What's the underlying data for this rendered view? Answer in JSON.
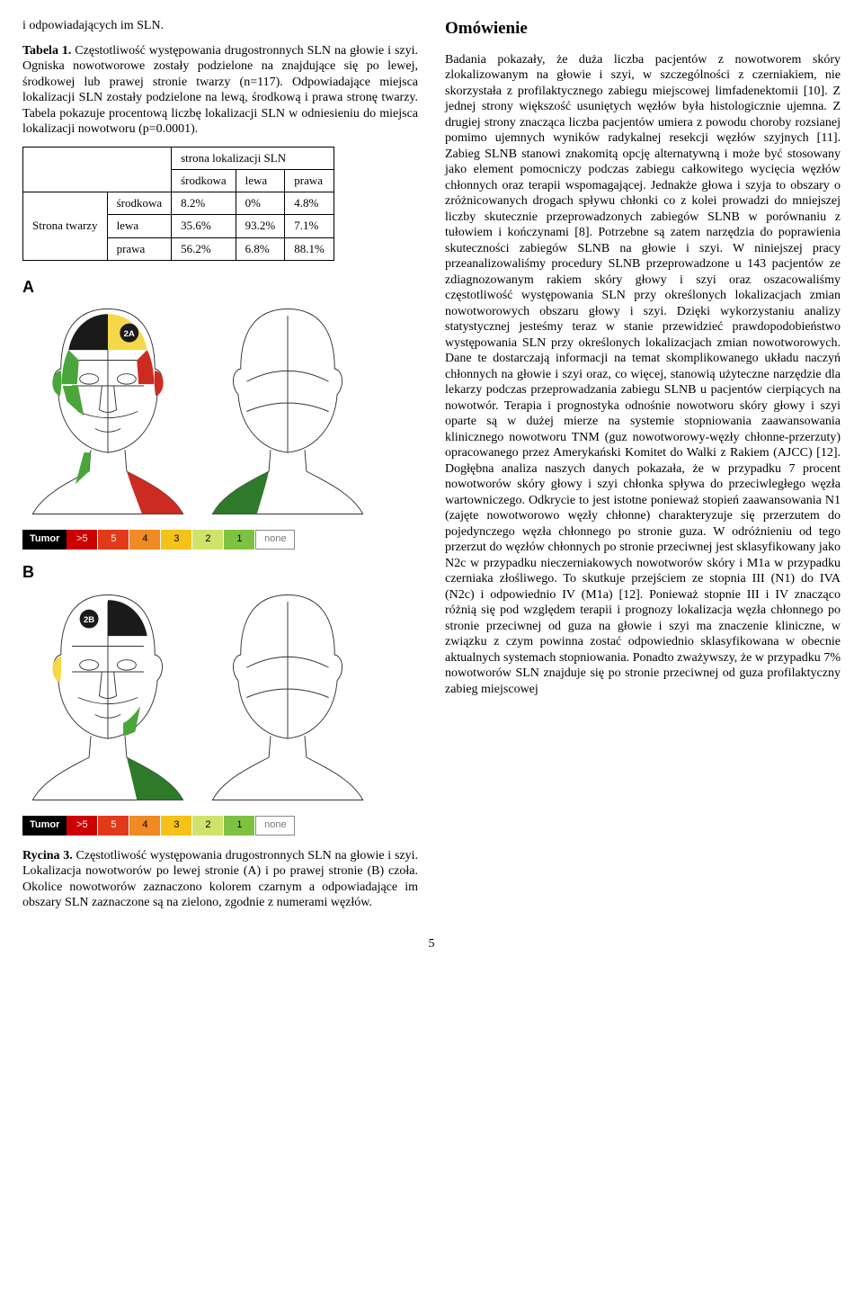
{
  "left": {
    "intro": "i odpowiadających im SLN.",
    "table_caption_label": "Tabela 1.",
    "table_caption_text": " Częstotliwość występowania drugostronnych SLN na głowie i szyi. Ogniska nowotworowe zostały podzielone na znajdujące się po lewej, środkowej lub prawej stronie twarzy (n=117). Odpowiadające miejsca lokalizacji SLN zostały podzielone na lewą, środkową i prawa stronę twarzy. Tabela pokazuje procentową liczbę lokalizacji SLN w odniesieniu do miejsca lokalizacji nowotworu (p=0.0001).",
    "table": {
      "header_group": "strona lokalizacji SLN",
      "col_headers": [
        "środkowa",
        "lewa",
        "prawa"
      ],
      "row_group": "Strona twarzy",
      "rows": [
        {
          "label": "środkowa",
          "cells": [
            "8.2%",
            "0%",
            "4.8%"
          ]
        },
        {
          "label": "lewa",
          "cells": [
            "35.6%",
            "93.2%",
            "7.1%"
          ]
        },
        {
          "label": "prawa",
          "cells": [
            "56.2%",
            "6.8%",
            "88.1%"
          ]
        }
      ]
    },
    "figure": {
      "panel_a": "A",
      "panel_b": "B",
      "legend_label": "Tumor",
      "legend_cells": [
        {
          "text": ">5",
          "bg": "#cc0000",
          "fg": "#ffffff"
        },
        {
          "text": "5",
          "bg": "#e03a1a",
          "fg": "#ffffff"
        },
        {
          "text": "4",
          "bg": "#ef8a24",
          "fg": "#000000"
        },
        {
          "text": "3",
          "bg": "#f5c21a",
          "fg": "#000000"
        },
        {
          "text": "2",
          "bg": "#cfe26a",
          "fg": "#000000"
        },
        {
          "text": "1",
          "bg": "#7fc241",
          "fg": "#000000"
        }
      ],
      "legend_none": "none",
      "colors": {
        "black": "#1a1a1a",
        "red": "#cc2b22",
        "yellow": "#f4d84a",
        "green": "#4aa53a",
        "dark_green": "#2f7a2a",
        "outline": "#333333",
        "badge_bg": "#1a1a1a",
        "badge_text": "#ffffff"
      },
      "badge_a": "2A",
      "badge_b": "2B"
    },
    "figure_caption_label": "Rycina 3.",
    "figure_caption_text": " Częstotliwość występowania drugostronnych SLN na głowie i szyi. Lokalizacja nowotworów po lewej stronie (A) i po prawej stronie (B) czoła. Okolice nowotworów zaznaczono kolorem czarnym a odpowiadające im obszary SLN zaznaczone są na zielono, zgodnie z numerami węzłów."
  },
  "right": {
    "heading": "Omówienie",
    "body": "Badania pokazały, że duża liczba pacjentów z nowotworem skóry zlokalizowanym na głowie i szyi, w szczególności z czerniakiem, nie skorzystała z profilaktycznego zabiegu miejscowej limfadenektomii [10]. Z jednej strony większość usuniętych węzłów była histologicznie ujemna. Z drugiej strony znacząca liczba pacjentów umiera z powodu choroby rozsianej pomimo ujemnych wyników radykalnej resekcji węzłów szyjnych [11]. Zabieg SLNB stanowi znakomitą opcję alternatywną i może być stosowany jako element pomocniczy podczas zabiegu całkowitego wycięcia węzłów chłonnych oraz terapii wspomagającej. Jednakże głowa i szyja to obszary o zróżnicowanych drogach spływu chłonki co z kolei prowadzi do mniejszej liczby skutecznie przeprowadzonych zabiegów SLNB w porównaniu z tułowiem i kończynami [8]. Potrzebne są zatem narzędzia do poprawienia skuteczności zabiegów SLNB na głowie i szyi. W niniejszej pracy przeanalizowaliśmy procedury SLNB przeprowadzone u 143 pacjentów ze zdiagnozowanym rakiem skóry głowy i szyi oraz oszacowaliśmy częstotliwość występowania SLN przy określonych lokalizacjach zmian nowotworowych obszaru głowy i szyi. Dzięki wykorzystaniu analizy statystycznej jesteśmy teraz w stanie przewidzieć prawdopodobieństwo występowania SLN przy określonych lokalizacjach zmian nowotworowych. Dane te dostarczają informacji na temat skomplikowanego układu naczyń chłonnych na głowie i szyi oraz, co więcej, stanowią użyteczne narzędzie dla lekarzy podczas przeprowadzania zabiegu SLNB u pacjentów cierpiących na nowotwór. Terapia i prognostyka odnośnie nowotworu skóry głowy i szyi oparte są w dużej mierze na systemie stopniowania zaawansowania klinicznego nowotworu TNM (guz nowotworowy-węzły chłonne-przerzuty) opracowanego przez Amerykański Komitet do Walki z Rakiem (AJCC) [12]. Dogłębna analiza naszych danych pokazała, że w przypadku 7 procent nowotworów skóry głowy i szyi chłonka spływa do przeciwległego węzła wartowniczego. Odkrycie to jest istotne ponieważ stopień zaawansowania N1 (zajęte nowotworowo węzły chłonne) charakteryzuje się przerzutem do pojedynczego węzła chłonnego po stronie guza. W odróżnieniu od tego przerzut do węzłów chłonnych po stronie przeciwnej jest sklasyfikowany jako N2c w przypadku nieczerniakowych nowotworów skóry i M1a w przypadku czerniaka złośliwego. To skutkuje przejściem ze stopnia III (N1) do IVA (N2c) i odpowiednio IV (M1a) [12]. Ponieważ stopnie III i IV znacząco różnią się pod względem terapii i prognozy lokalizacja węzła chłonnego po stronie przeciwnej od guza na głowie i szyi ma znaczenie kliniczne, w związku z czym powinna zostać odpowiednio sklasyfikowana w obecnie aktualnych systemach stopniowania. Ponadto zważywszy, że w przypadku 7% nowotworów SLN znajduje się po stronie przeciwnej od guza profilaktyczny zabieg miejscowej"
  },
  "page_number": "5"
}
